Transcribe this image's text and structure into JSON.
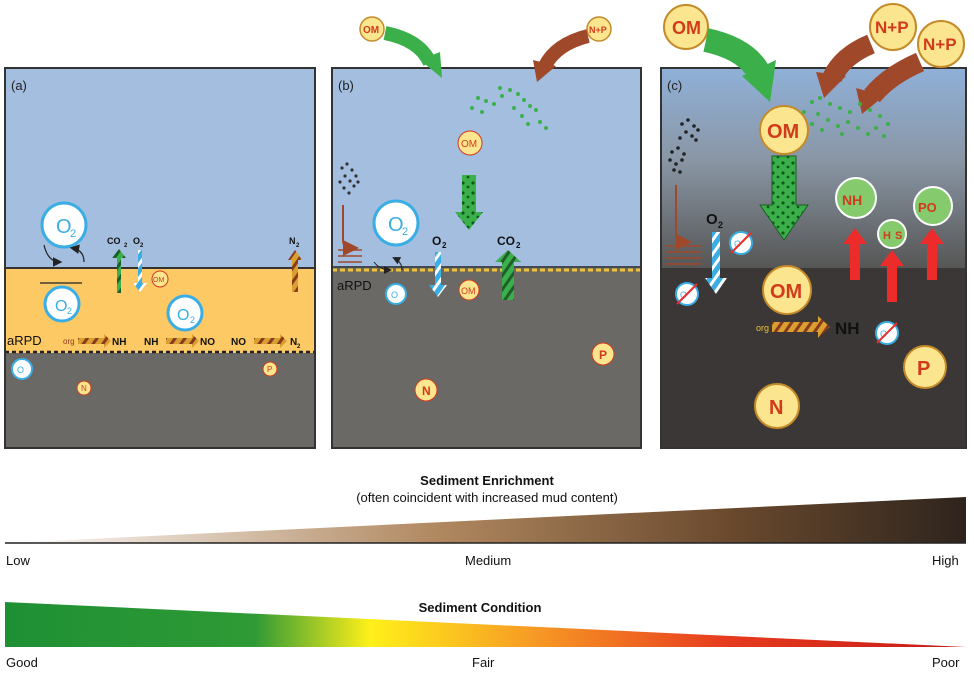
{
  "panels": {
    "a": {
      "label": "(a)",
      "arpd": "aRPD",
      "o2": "O",
      "o2_sub": "2",
      "co2": "CO",
      "co2_sub": "2",
      "n2": "N",
      "n2_sub": "2",
      "om": "OM",
      "org": "org",
      "nh4": "NH",
      "no3": "NO",
      "n": "N",
      "p": "P"
    },
    "b": {
      "label": "(b)",
      "arpd": "aRPD",
      "om": "OM",
      "np": "N+P",
      "o2": "O",
      "o2_sub": "2",
      "co2": "CO",
      "co2_sub": "2",
      "n": "N",
      "p": "P"
    },
    "c": {
      "label": "(c)",
      "om": "OM",
      "np": "N+P",
      "o2": "O",
      "o2_sub": "2",
      "nh4": "NH",
      "po4": "PO",
      "h2s": "H",
      "h2s_s": "S",
      "org": "org",
      "n": "N",
      "p": "P"
    }
  },
  "enrichment": {
    "title": "Sediment Enrichment",
    "subtitle": "(often coincident with increased mud content)",
    "low": "Low",
    "medium": "Medium",
    "high": "High"
  },
  "condition": {
    "title": "Sediment Condition",
    "good": "Good",
    "fair": "Fair",
    "poor": "Poor"
  },
  "colors": {
    "water": "#a3bedf",
    "oxic": "#fdc965",
    "anoxic": "#6a6966",
    "anoxic_dark": "#3a3736",
    "om_fill": "#fbe68f",
    "om_text": "#d23a1c",
    "green_arrow": "#3bb04a",
    "brown_arrow": "#a0482a",
    "blue": "#3aaee4",
    "red": "#ee2b2b",
    "nutrient_green": "#86ca6e"
  }
}
